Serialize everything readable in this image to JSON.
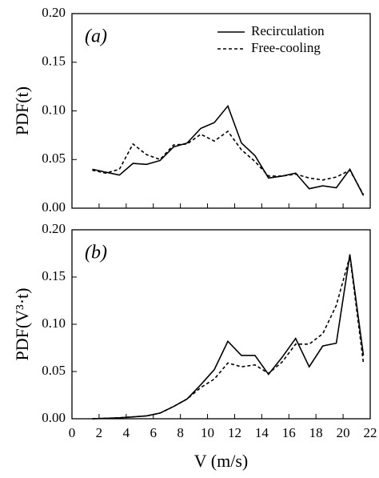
{
  "chart_data": [
    {
      "type": "line",
      "panel_label": "(a)",
      "ylabel": "PDF(t)",
      "x": [
        1.5,
        2.5,
        3.5,
        4.5,
        5.5,
        6.5,
        7.5,
        8.5,
        9.5,
        10.5,
        11.5,
        12.5,
        13.5,
        14.5,
        15.5,
        16.5,
        17.5,
        18.5,
        19.5,
        20.5,
        21.5
      ],
      "series": [
        {
          "name": "Recirculation",
          "color": "#000000",
          "line_style": "solid",
          "values": [
            0.04,
            0.037,
            0.034,
            0.046,
            0.045,
            0.049,
            0.063,
            0.067,
            0.082,
            0.088,
            0.105,
            0.067,
            0.054,
            0.031,
            0.033,
            0.036,
            0.02,
            0.023,
            0.021,
            0.04,
            0.013
          ]
        },
        {
          "name": "Free-cooling",
          "color": "#000000",
          "line_style": "dashed",
          "values": [
            0.039,
            0.036,
            0.04,
            0.066,
            0.055,
            0.05,
            0.065,
            0.066,
            0.076,
            0.069,
            0.079,
            0.06,
            0.048,
            0.033,
            0.033,
            0.035,
            0.031,
            0.029,
            0.032,
            0.039,
            0.014
          ]
        }
      ],
      "xlim": [
        0,
        22
      ],
      "xticks": [
        0,
        2,
        4,
        6,
        8,
        10,
        12,
        14,
        16,
        18,
        20,
        22
      ],
      "ylim": [
        0,
        0.2
      ],
      "yticks": [
        {
          "value": 0,
          "label": "0.00"
        },
        {
          "value": 0.05,
          "label": "0.05"
        },
        {
          "value": 0.1,
          "label": "0.10"
        },
        {
          "value": 0.15,
          "label": "0.15"
        },
        {
          "value": 0.2,
          "label": "0.20"
        }
      ],
      "legend": "upper right"
    },
    {
      "type": "line",
      "panel_label": "(b)",
      "ylabel": "PDF(V³·t)",
      "xlabel": "V (m/s)",
      "x": [
        1.5,
        2.5,
        3.5,
        4.5,
        5.5,
        6.5,
        7.5,
        8.5,
        9.5,
        10.5,
        11.5,
        12.5,
        13.5,
        14.5,
        15.5,
        16.5,
        17.5,
        18.5,
        19.5,
        20.5,
        21.5
      ],
      "series": [
        {
          "color": "#000000",
          "line_style": "solid",
          "values": [
            0.0,
            0.0005,
            0.001,
            0.002,
            0.003,
            0.006,
            0.013,
            0.021,
            0.036,
            0.052,
            0.082,
            0.067,
            0.067,
            0.047,
            0.065,
            0.085,
            0.055,
            0.077,
            0.08,
            0.174,
            0.067
          ]
        },
        {
          "color": "#000000",
          "line_style": "dashed",
          "values": [
            0.0,
            0.0005,
            0.001,
            0.002,
            0.003,
            0.006,
            0.013,
            0.021,
            0.033,
            0.042,
            0.059,
            0.055,
            0.057,
            0.048,
            0.06,
            0.079,
            0.079,
            0.09,
            0.12,
            0.172,
            0.059
          ]
        }
      ],
      "xlim": [
        0,
        22
      ],
      "xticks": [
        0,
        2,
        4,
        6,
        8,
        10,
        12,
        14,
        16,
        18,
        20,
        22
      ],
      "ylim": [
        0,
        0.2
      ],
      "yticks": [
        {
          "value": 0,
          "label": "0.00"
        },
        {
          "value": 0.05,
          "label": "0.05"
        },
        {
          "value": 0.1,
          "label": "0.10"
        },
        {
          "value": 0.15,
          "label": "0.15"
        },
        {
          "value": 0.2,
          "label": "0.20"
        }
      ]
    }
  ]
}
